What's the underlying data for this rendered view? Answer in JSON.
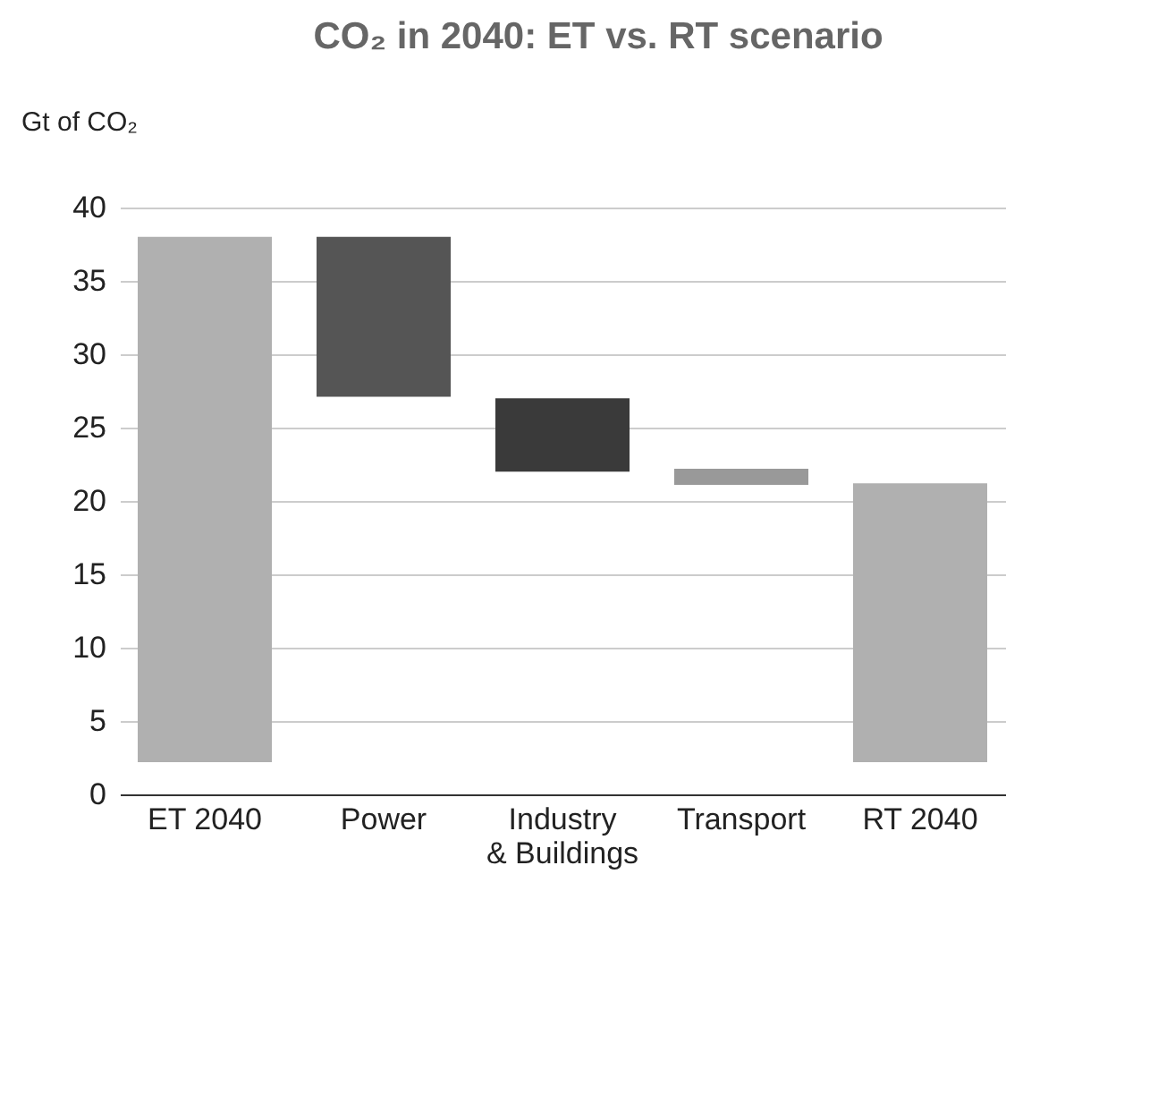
{
  "chart_data": {
    "type": "bar",
    "title": "CO₂ in 2040: ET vs. RT scenario",
    "ylabel": "Gt of CO₂",
    "categories": [
      "ET 2040",
      "Power",
      "Industry & Buildings",
      "Transport",
      "RT 2040"
    ],
    "values": [
      35.8,
      10.9,
      5.0,
      1.1,
      19.0
    ],
    "base": [
      2.2,
      27.1,
      22.0,
      21.1,
      2.2
    ],
    "colors": [
      "#b0b0b0",
      "#555555",
      "#3a3a3a",
      "#999999",
      "#b0b0b0"
    ],
    "ylim": [
      0,
      40
    ],
    "yticks": [
      0,
      5,
      10,
      15,
      20,
      25,
      30,
      35,
      40
    ],
    "grid": "y"
  }
}
